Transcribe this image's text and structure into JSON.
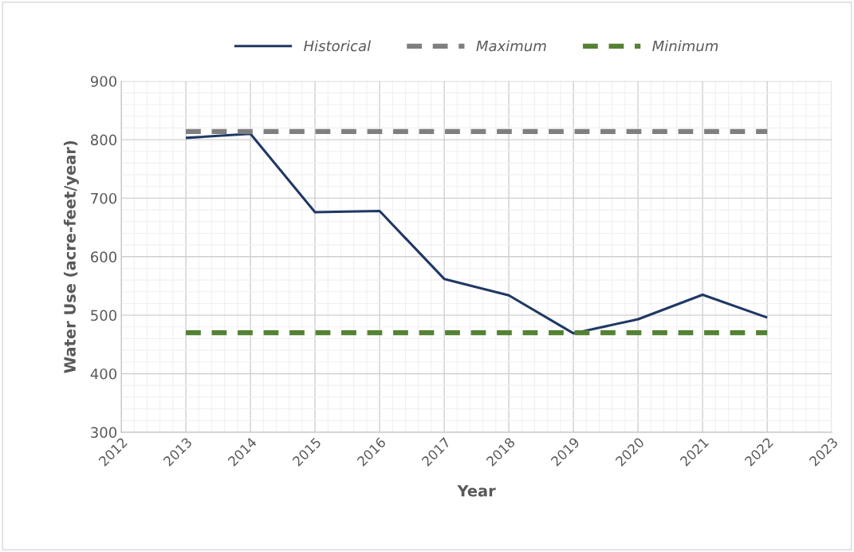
{
  "chart_data": {
    "type": "line",
    "xlabel": "Year",
    "ylabel": "Water Use (acre-feet/year)",
    "xlim": [
      2012,
      2023
    ],
    "xticks": [
      2012,
      2013,
      2014,
      2015,
      2016,
      2017,
      2018,
      2019,
      2020,
      2021,
      2022,
      2023
    ],
    "ylim": [
      300,
      900
    ],
    "yticks": [
      300,
      400,
      500,
      600,
      700,
      800,
      900
    ],
    "grid": true,
    "legend": "top",
    "marker": "none",
    "series": [
      {
        "name": "Historical",
        "color": "#1f3864",
        "line_style": "solid",
        "x": [
          2013,
          2014,
          2015,
          2016,
          2017,
          2018,
          2019,
          2020,
          2021,
          2022
        ],
        "values": [
          803,
          810,
          676,
          678,
          562,
          534,
          469,
          493,
          535,
          496
        ]
      },
      {
        "name": "Maximum",
        "color": "#7f7f7f",
        "line_style": "dashed",
        "x": [
          2013,
          2022
        ],
        "values": [
          814,
          814
        ]
      },
      {
        "name": "Minimum",
        "color": "#548235",
        "line_style": "dashed",
        "x": [
          2013,
          2022
        ],
        "values": [
          470,
          470
        ]
      }
    ]
  }
}
